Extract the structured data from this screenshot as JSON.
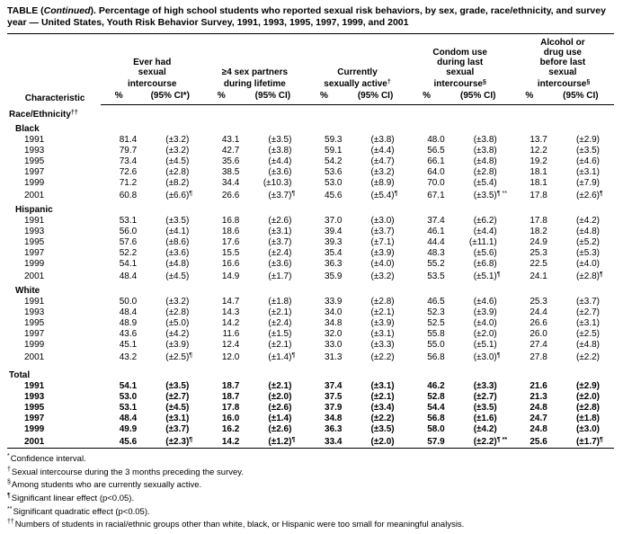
{
  "title": {
    "prefix": "TABLE (",
    "continued": "Continued",
    "suffix": "). Percentage of high school students who reported sexual risk behaviors, by sex, grade, race/ethnicity, and survey year — United States, Youth Risk Behavior Survey, 1991, 1993, 1995, 1997, 1999, and 2001"
  },
  "columns": {
    "characteristic": "Characteristic",
    "groups": [
      {
        "label": "Ever had sexual intercourse",
        "sup": "",
        "pct_label": "%",
        "ci_label": "(95% CI*)"
      },
      {
        "label": "≥4 sex partners during lifetime",
        "sup": "",
        "pct_label": "%",
        "ci_label": "(95% CI)"
      },
      {
        "label": "Currently sexually active",
        "sup": "†",
        "pct_label": "%",
        "ci_label": "(95% CI)"
      },
      {
        "label": "Condom use during last sexual intercourse",
        "sup": "§",
        "pct_label": "%",
        "ci_label": "(95% CI)"
      },
      {
        "label": "Alcohol or drug use before last sexual intercourse",
        "sup": "§",
        "pct_label": "%",
        "ci_label": "(95% CI)"
      }
    ]
  },
  "sections": [
    {
      "header": "Race/Ethnicity",
      "header_sup": "††",
      "bold": false,
      "groups": [
        {
          "name": "Black",
          "rows": [
            {
              "year": "1991",
              "cells": [
                [
                  "81.4",
                  "(±3.2)",
                  ""
                ],
                [
                  "43.1",
                  "(±3.5)",
                  ""
                ],
                [
                  "59.3",
                  "(±3.8)",
                  ""
                ],
                [
                  "48.0",
                  "(±3.8)",
                  ""
                ],
                [
                  "13.7",
                  "(±2.9)",
                  ""
                ]
              ]
            },
            {
              "year": "1993",
              "cells": [
                [
                  "79.7",
                  "(±3.2)",
                  ""
                ],
                [
                  "42.7",
                  "(±3.8)",
                  ""
                ],
                [
                  "59.1",
                  "(±4.4)",
                  ""
                ],
                [
                  "56.5",
                  "(±3.8)",
                  ""
                ],
                [
                  "12.2",
                  "(±3.5)",
                  ""
                ]
              ]
            },
            {
              "year": "1995",
              "cells": [
                [
                  "73.4",
                  "(±4.5)",
                  ""
                ],
                [
                  "35.6",
                  "(±4.4)",
                  ""
                ],
                [
                  "54.2",
                  "(±4.7)",
                  ""
                ],
                [
                  "66.1",
                  "(±4.8)",
                  ""
                ],
                [
                  "19.2",
                  "(±4.6)",
                  ""
                ]
              ]
            },
            {
              "year": "1997",
              "cells": [
                [
                  "72.6",
                  "(±2.8)",
                  ""
                ],
                [
                  "38.5",
                  "(±3.6)",
                  ""
                ],
                [
                  "53.6",
                  "(±3.2)",
                  ""
                ],
                [
                  "64.0",
                  "(±2.8)",
                  ""
                ],
                [
                  "18.1",
                  "(±3.1)",
                  ""
                ]
              ]
            },
            {
              "year": "1999",
              "cells": [
                [
                  "71.2",
                  "(±8.2)",
                  ""
                ],
                [
                  "34.4",
                  "(±10.3)",
                  ""
                ],
                [
                  "53.0",
                  "(±8.9)",
                  ""
                ],
                [
                  "70.0",
                  "(±5.4)",
                  ""
                ],
                [
                  "18.1",
                  "(±7.9)",
                  ""
                ]
              ]
            },
            {
              "year": "2001",
              "cells": [
                [
                  "60.8",
                  "(±6.6)",
                  "¶"
                ],
                [
                  "26.6",
                  "(±3.7)",
                  "¶"
                ],
                [
                  "45.6",
                  "(±5.4)",
                  "¶"
                ],
                [
                  "67.1",
                  "(±3.5)",
                  "¶ **"
                ],
                [
                  "17.8",
                  "(±2.6)",
                  "¶"
                ]
              ]
            }
          ]
        },
        {
          "name": "Hispanic",
          "rows": [
            {
              "year": "1991",
              "cells": [
                [
                  "53.1",
                  "(±3.5)",
                  ""
                ],
                [
                  "16.8",
                  "(±2.6)",
                  ""
                ],
                [
                  "37.0",
                  "(±3.0)",
                  ""
                ],
                [
                  "37.4",
                  "(±6.2)",
                  ""
                ],
                [
                  "17.8",
                  "(±4.2)",
                  ""
                ]
              ]
            },
            {
              "year": "1993",
              "cells": [
                [
                  "56.0",
                  "(±4.1)",
                  ""
                ],
                [
                  "18.6",
                  "(±3.1)",
                  ""
                ],
                [
                  "39.4",
                  "(±3.7)",
                  ""
                ],
                [
                  "46.1",
                  "(±4.4)",
                  ""
                ],
                [
                  "18.2",
                  "(±4.8)",
                  ""
                ]
              ]
            },
            {
              "year": "1995",
              "cells": [
                [
                  "57.6",
                  "(±8.6)",
                  ""
                ],
                [
                  "17.6",
                  "(±3.7)",
                  ""
                ],
                [
                  "39.3",
                  "(±7.1)",
                  ""
                ],
                [
                  "44.4",
                  "(±11.1)",
                  ""
                ],
                [
                  "24.9",
                  "(±5.2)",
                  ""
                ]
              ]
            },
            {
              "year": "1997",
              "cells": [
                [
                  "52.2",
                  "(±3.6)",
                  ""
                ],
                [
                  "15.5",
                  "(±2.4)",
                  ""
                ],
                [
                  "35.4",
                  "(±3.9)",
                  ""
                ],
                [
                  "48.3",
                  "(±5.6)",
                  ""
                ],
                [
                  "25.3",
                  "(±5.3)",
                  ""
                ]
              ]
            },
            {
              "year": "1999",
              "cells": [
                [
                  "54.1",
                  "(±4.8)",
                  ""
                ],
                [
                  "16.6",
                  "(±3.6)",
                  ""
                ],
                [
                  "36.3",
                  "(±4.0)",
                  ""
                ],
                [
                  "55.2",
                  "(±6.8)",
                  ""
                ],
                [
                  "22.5",
                  "(±4.0)",
                  ""
                ]
              ]
            },
            {
              "year": "2001",
              "cells": [
                [
                  "48.4",
                  "(±4.5)",
                  ""
                ],
                [
                  "14.9",
                  "(±1.7)",
                  ""
                ],
                [
                  "35.9",
                  "(±3.2)",
                  ""
                ],
                [
                  "53.5",
                  "(±5.1)",
                  "¶"
                ],
                [
                  "24.1",
                  "(±2.8)",
                  "¶"
                ]
              ]
            }
          ]
        },
        {
          "name": "White",
          "rows": [
            {
              "year": "1991",
              "cells": [
                [
                  "50.0",
                  "(±3.2)",
                  ""
                ],
                [
                  "14.7",
                  "(±1.8)",
                  ""
                ],
                [
                  "33.9",
                  "(±2.8)",
                  ""
                ],
                [
                  "46.5",
                  "(±4.6)",
                  ""
                ],
                [
                  "25.3",
                  "(±3.7)",
                  ""
                ]
              ]
            },
            {
              "year": "1993",
              "cells": [
                [
                  "48.4",
                  "(±2.8)",
                  ""
                ],
                [
                  "14.3",
                  "(±2.1)",
                  ""
                ],
                [
                  "34.0",
                  "(±2.1)",
                  ""
                ],
                [
                  "52.3",
                  "(±3.9)",
                  ""
                ],
                [
                  "24.4",
                  "(±2.7)",
                  ""
                ]
              ]
            },
            {
              "year": "1995",
              "cells": [
                [
                  "48.9",
                  "(±5.0)",
                  ""
                ],
                [
                  "14.2",
                  "(±2.4)",
                  ""
                ],
                [
                  "34.8",
                  "(±3.9)",
                  ""
                ],
                [
                  "52.5",
                  "(±4.0)",
                  ""
                ],
                [
                  "26.6",
                  "(±3.1)",
                  ""
                ]
              ]
            },
            {
              "year": "1997",
              "cells": [
                [
                  "43.6",
                  "(±4.2)",
                  ""
                ],
                [
                  "11.6",
                  "(±1.5)",
                  ""
                ],
                [
                  "32.0",
                  "(±3.1)",
                  ""
                ],
                [
                  "55.8",
                  "(±2.0)",
                  ""
                ],
                [
                  "26.0",
                  "(±2.5)",
                  ""
                ]
              ]
            },
            {
              "year": "1999",
              "cells": [
                [
                  "45.1",
                  "(±3.9)",
                  ""
                ],
                [
                  "12.4",
                  "(±2.1)",
                  ""
                ],
                [
                  "33.0",
                  "(±3.3)",
                  ""
                ],
                [
                  "55.0",
                  "(±5.1)",
                  ""
                ],
                [
                  "27.4",
                  "(±4.8)",
                  ""
                ]
              ]
            },
            {
              "year": "2001",
              "cells": [
                [
                  "43.2",
                  "(±2.5)",
                  "¶"
                ],
                [
                  "12.0",
                  "(±1.4)",
                  "¶"
                ],
                [
                  "31.3",
                  "(±2.2)",
                  ""
                ],
                [
                  "56.8",
                  "(±3.0)",
                  "¶"
                ],
                [
                  "27.8",
                  "(±2.2)",
                  ""
                ]
              ]
            }
          ]
        }
      ]
    },
    {
      "header": "Total",
      "header_sup": "",
      "bold": true,
      "groups": [
        {
          "name": "",
          "rows": [
            {
              "year": "1991",
              "cells": [
                [
                  "54.1",
                  "(±3.5)",
                  ""
                ],
                [
                  "18.7",
                  "(±2.1)",
                  ""
                ],
                [
                  "37.4",
                  "(±3.1)",
                  ""
                ],
                [
                  "46.2",
                  "(±3.3)",
                  ""
                ],
                [
                  "21.6",
                  "(±2.9)",
                  ""
                ]
              ]
            },
            {
              "year": "1993",
              "cells": [
                [
                  "53.0",
                  "(±2.7)",
                  ""
                ],
                [
                  "18.7",
                  "(±2.0)",
                  ""
                ],
                [
                  "37.5",
                  "(±2.1)",
                  ""
                ],
                [
                  "52.8",
                  "(±2.7)",
                  ""
                ],
                [
                  "21.3",
                  "(±2.0)",
                  ""
                ]
              ]
            },
            {
              "year": "1995",
              "cells": [
                [
                  "53.1",
                  "(±4.5)",
                  ""
                ],
                [
                  "17.8",
                  "(±2.6)",
                  ""
                ],
                [
                  "37.9",
                  "(±3.4)",
                  ""
                ],
                [
                  "54.4",
                  "(±3.5)",
                  ""
                ],
                [
                  "24.8",
                  "(±2.8)",
                  ""
                ]
              ]
            },
            {
              "year": "1997",
              "cells": [
                [
                  "48.4",
                  "(±3.1)",
                  ""
                ],
                [
                  "16.0",
                  "(±1.4)",
                  ""
                ],
                [
                  "34.8",
                  "(±2.2)",
                  ""
                ],
                [
                  "56.8",
                  "(±1.6)",
                  ""
                ],
                [
                  "24.7",
                  "(±1.8)",
                  ""
                ]
              ]
            },
            {
              "year": "1999",
              "cells": [
                [
                  "49.9",
                  "(±3.7)",
                  ""
                ],
                [
                  "16.2",
                  "(±2.6)",
                  ""
                ],
                [
                  "36.3",
                  "(±3.5)",
                  ""
                ],
                [
                  "58.0",
                  "(±4.2)",
                  ""
                ],
                [
                  "24.8",
                  "(±3.0)",
                  ""
                ]
              ]
            },
            {
              "year": "2001",
              "cells": [
                [
                  "45.6",
                  "(±2.3)",
                  "¶"
                ],
                [
                  "14.2",
                  "(±1.2)",
                  "¶"
                ],
                [
                  "33.4",
                  "(±2.0)",
                  ""
                ],
                [
                  "57.9",
                  "(±2.2)",
                  "¶ **"
                ],
                [
                  "25.6",
                  "(±1.7)",
                  "¶"
                ]
              ]
            }
          ]
        }
      ]
    }
  ],
  "footnotes": [
    {
      "marker": "*",
      "text": "Confidence interval."
    },
    {
      "marker": "†",
      "text": "Sexual intercourse during the 3 months preceding the survey."
    },
    {
      "marker": "§",
      "text": "Among students who are currently sexually active."
    },
    {
      "marker": "¶",
      "text": "Significant linear effect (p<0.05)."
    },
    {
      "marker": "**",
      "text": "Significant quadratic effect (p<0.05)."
    },
    {
      "marker": "††",
      "text": "Numbers of students in racial/ethnic groups other than white, black, or Hispanic were too small for meaningful analysis."
    }
  ]
}
